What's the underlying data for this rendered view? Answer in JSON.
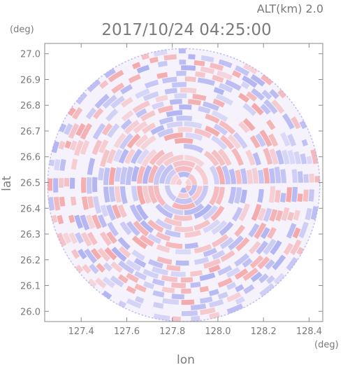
{
  "chart_data": {
    "type": "heatmap",
    "title": "2017/10/24 04:25:00",
    "subtitle": "ALT(km) 2.0",
    "xlabel": "lon",
    "ylabel": "lat",
    "x_unit": "(deg)",
    "y_unit": "(deg)",
    "xlim": [
      127.24,
      128.46
    ],
    "ylim": [
      25.96,
      27.04
    ],
    "x_ticks": [
      "127.4",
      "127.6",
      "127.8",
      "128.0",
      "128.2",
      "128.4"
    ],
    "y_ticks": [
      "26.0",
      "26.1",
      "26.2",
      "26.3",
      "26.4",
      "26.5",
      "26.6",
      "26.7",
      "26.8",
      "26.9",
      "27.0"
    ],
    "center": {
      "lon": 127.85,
      "lat": 26.49
    },
    "radius_deg": 0.6,
    "colors": {
      "positive": "#f4a0a0",
      "negative": "#a8acf0",
      "frame": "#8a8a8a"
    }
  }
}
